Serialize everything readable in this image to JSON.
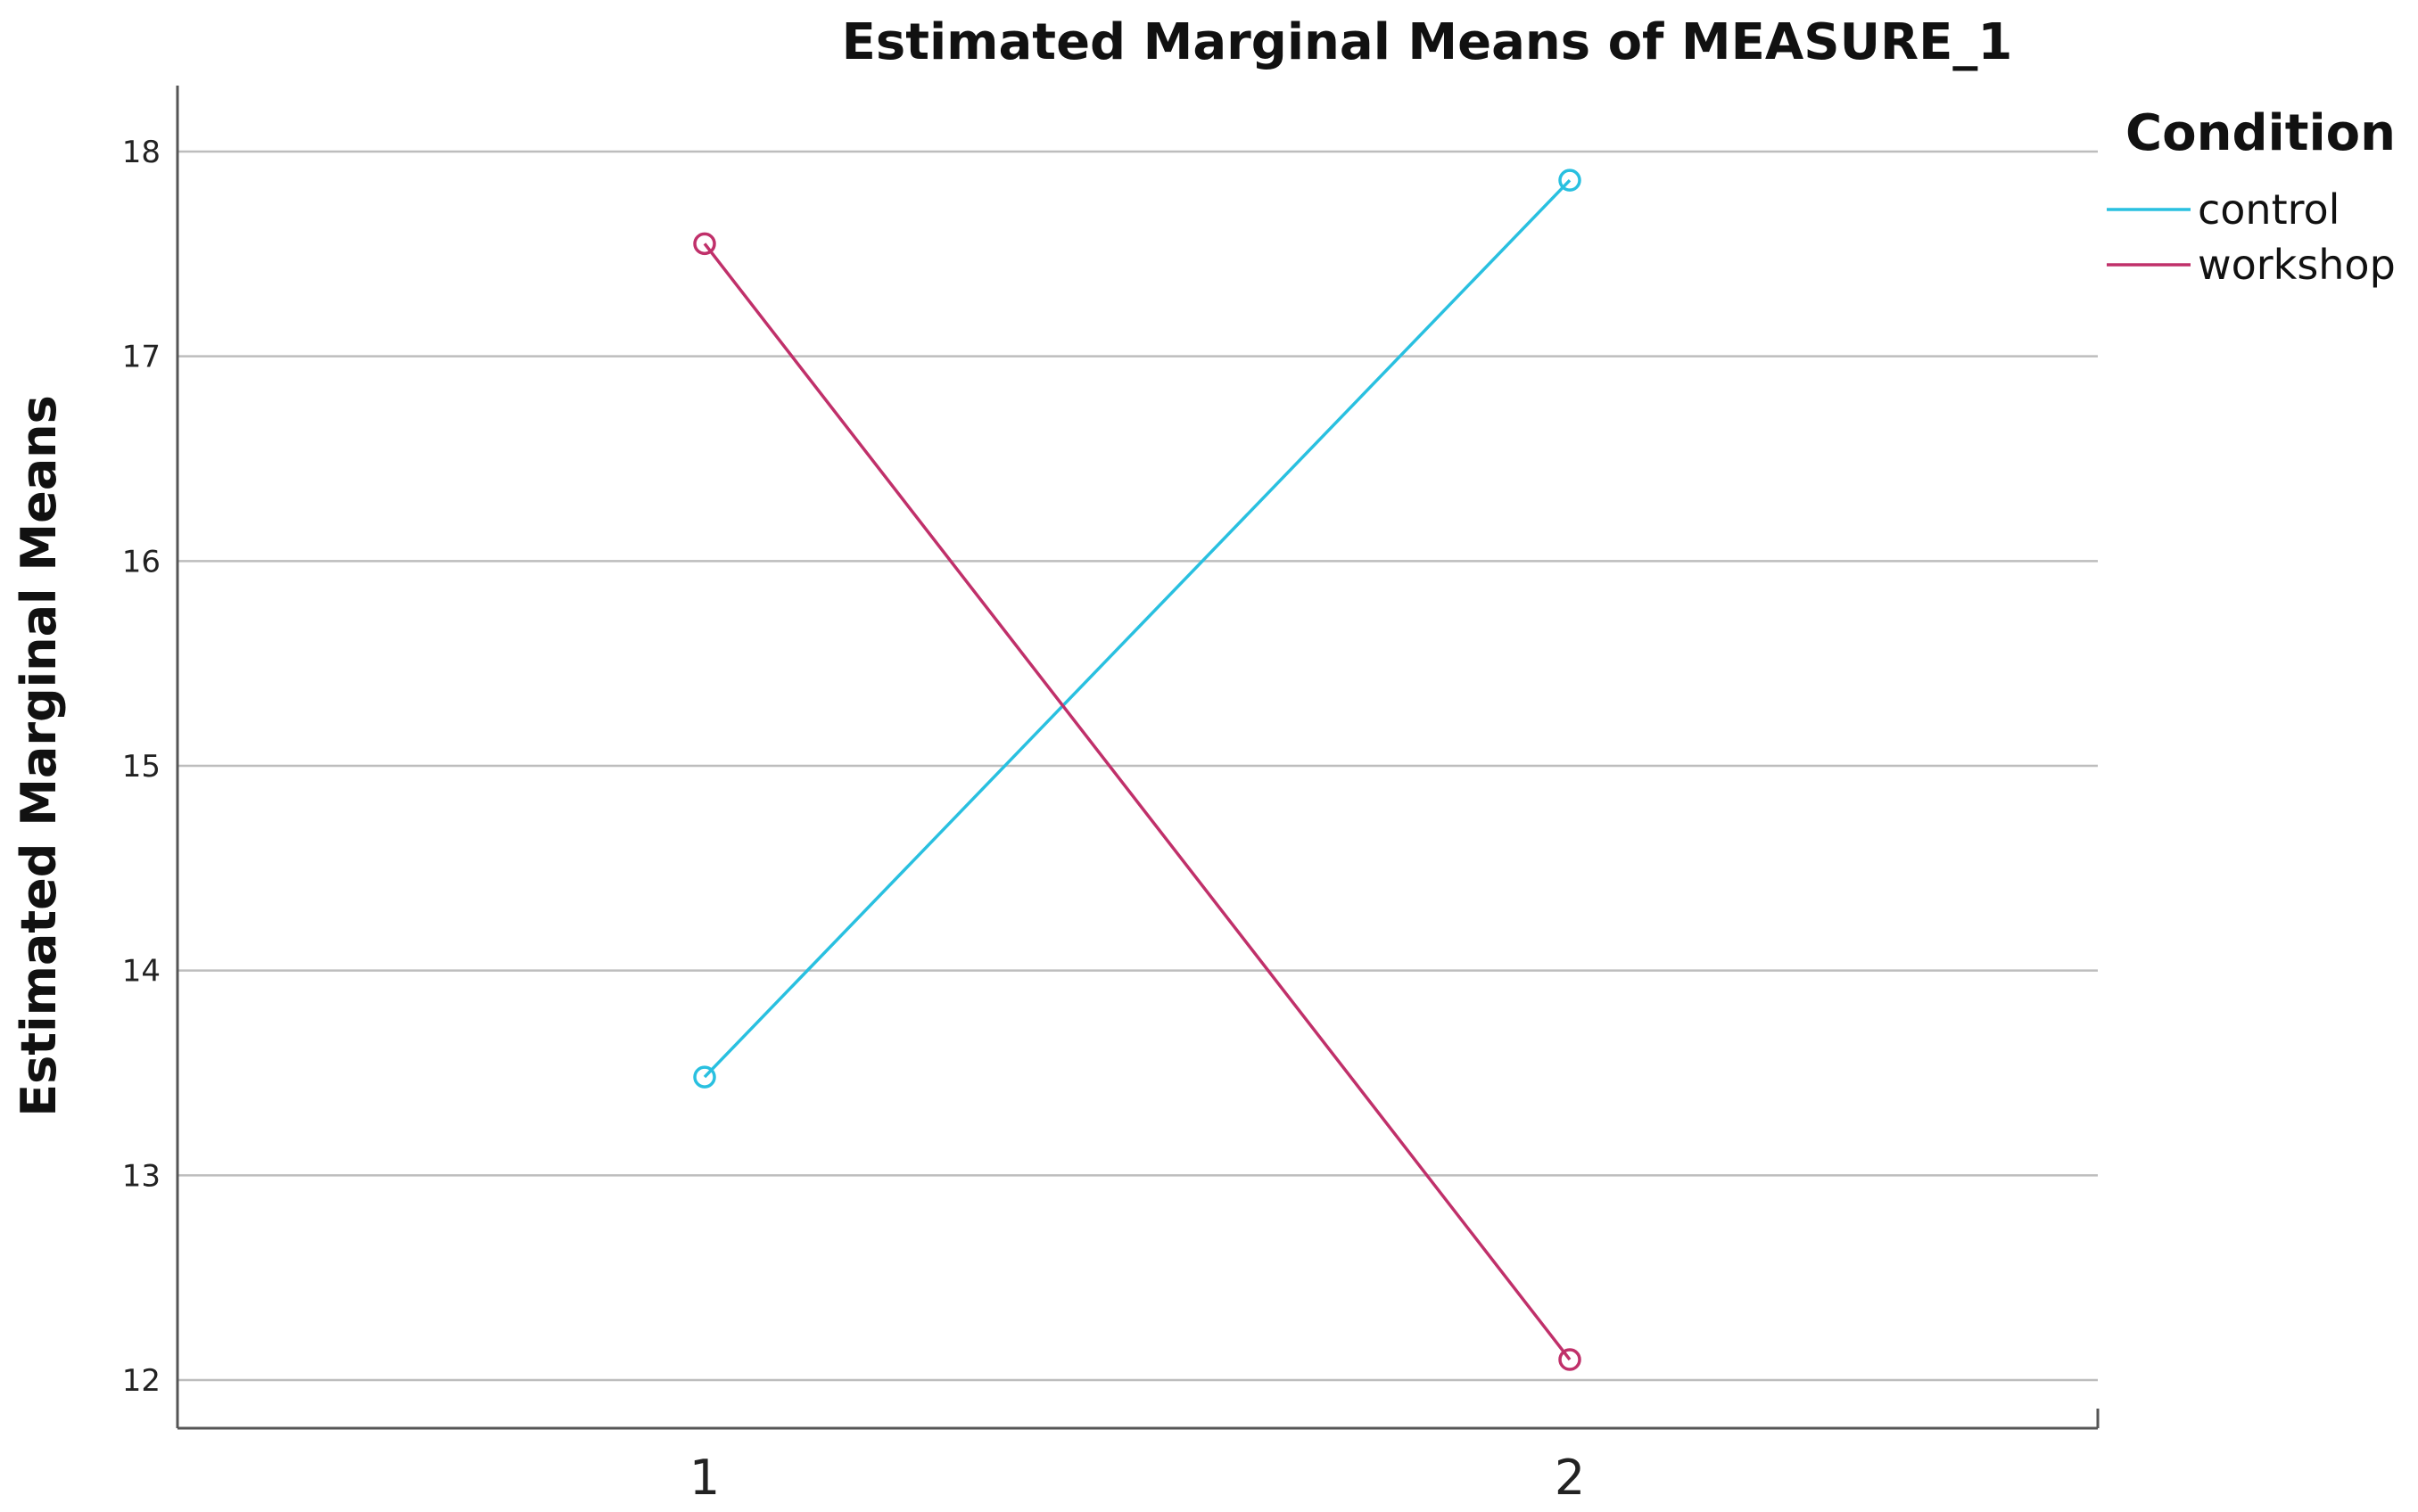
{
  "chart_data": {
    "type": "line",
    "title": "Estimated Marginal Means of MEASURE_1",
    "xlabel": "",
    "ylabel": "Estimated Marginal Means",
    "categories": [
      "1",
      "2"
    ],
    "yticks": [
      12,
      13,
      14,
      15,
      16,
      17,
      18
    ],
    "ylim": [
      11.78,
      18.32
    ],
    "grid": true,
    "legend": {
      "title": "Condition",
      "placement": "top-right"
    },
    "series": [
      {
        "name": "control",
        "values": [
          13.48,
          17.86
        ],
        "color": "#29c0e0",
        "marker": "circle"
      },
      {
        "name": "workshop",
        "values": [
          17.55,
          12.1
        ],
        "color": "#c0306a",
        "marker": "circle"
      }
    ]
  }
}
